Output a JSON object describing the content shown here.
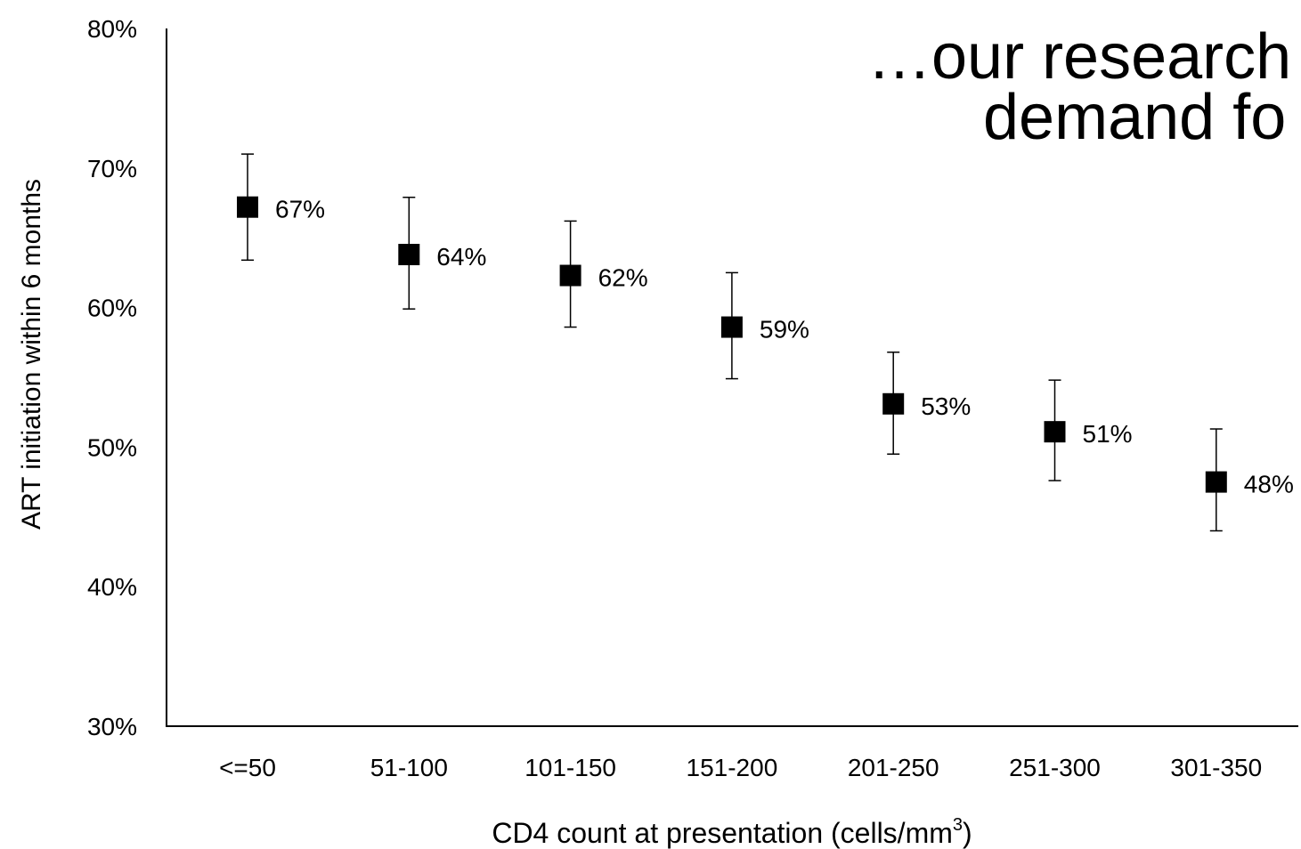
{
  "headline": {
    "line1": "…our research",
    "line2": "demand fo"
  },
  "chart_data": {
    "type": "scatter",
    "categories": [
      "<=50",
      "51-100",
      "101-150",
      "151-200",
      "201-250",
      "251-300",
      "301-350"
    ],
    "values": [
      0.672,
      0.638,
      0.623,
      0.586,
      0.531,
      0.511,
      0.475
    ],
    "error_low": [
      0.634,
      0.599,
      0.586,
      0.549,
      0.495,
      0.476,
      0.44
    ],
    "error_high": [
      0.71,
      0.679,
      0.662,
      0.625,
      0.568,
      0.548,
      0.513
    ],
    "data_labels": [
      "67%",
      "64%",
      "62%",
      "59%",
      "53%",
      "51%",
      "48%"
    ],
    "xlabel": "CD4 count at presentation (cells/mm",
    "xlabel_superscript": "3",
    "xlabel_suffix": ")",
    "ylabel": "ART initiation within 6 months",
    "ylim": [
      0.3,
      0.8
    ],
    "yticks": [
      {
        "value": 0.3,
        "label": "30%"
      },
      {
        "value": 0.4,
        "label": "40%"
      },
      {
        "value": 0.5,
        "label": "50%"
      },
      {
        "value": 0.6,
        "label": "60%"
      },
      {
        "value": 0.7,
        "label": "70%"
      },
      {
        "value": 0.8,
        "label": "80%"
      }
    ],
    "grid": false,
    "marker": "square",
    "colors": {
      "marker": "#000000",
      "axis": "#000000",
      "text": "#000000"
    }
  }
}
